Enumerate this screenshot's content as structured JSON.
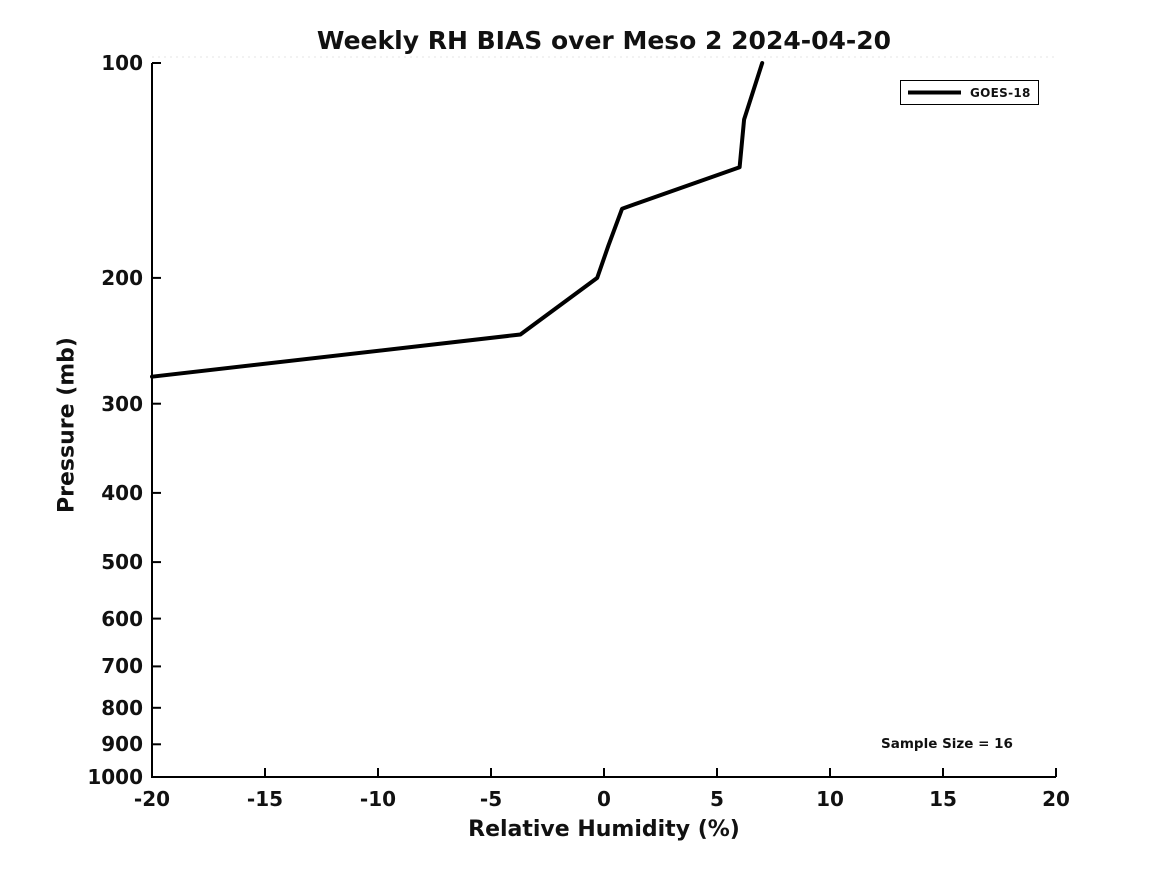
{
  "figure": {
    "background": "#ffffff",
    "text_color": "#111111",
    "axis_color": "#000000"
  },
  "chart_data": {
    "type": "line",
    "title": "Weekly RH BIAS over Meso 2 2024-04-20",
    "xlabel": "Relative Humidity (%)",
    "ylabel": "Pressure (mb)",
    "xlim": [
      -20,
      20
    ],
    "ylim": [
      100,
      1000
    ],
    "yscale": "log",
    "y_axis_inverted": true,
    "xticks": [
      -20,
      -15,
      -10,
      -5,
      0,
      5,
      10,
      15,
      20
    ],
    "yticks": [
      100,
      200,
      300,
      400,
      500,
      600,
      700,
      800,
      900,
      1000
    ],
    "grid": false,
    "legend_position": "top-right",
    "annotation": "Sample Size = 16",
    "series": [
      {
        "name": "GOES-18",
        "color": "#000000",
        "linewidth": 4,
        "x_rh_bias_percent": [
          7.0,
          6.2,
          6.0,
          0.8,
          0.2,
          -0.3,
          -3.7,
          -20.0
        ],
        "y_pressure_mb": [
          100,
          120,
          140,
          160,
          180,
          200,
          240,
          275
        ]
      }
    ]
  }
}
